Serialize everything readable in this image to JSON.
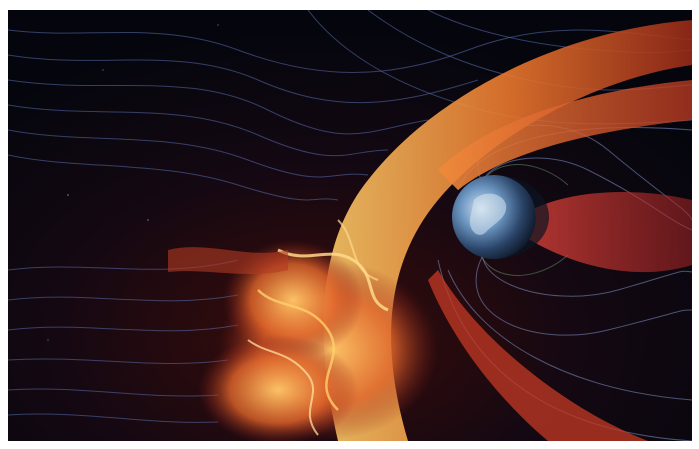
{
  "scene": {
    "subject": "planet-magnetosphere-illustration",
    "colors": {
      "space": "#07080f",
      "field_lines": "#5a6fb0",
      "plasma_hot": "#ffb347",
      "plasma_mid": "#e2572a",
      "plasma_dark": "#8a1f1a",
      "planet_ocean": "#4f7fb0",
      "planet_shadow": "#0c1422",
      "radiation_belt": "#d9433a"
    }
  }
}
